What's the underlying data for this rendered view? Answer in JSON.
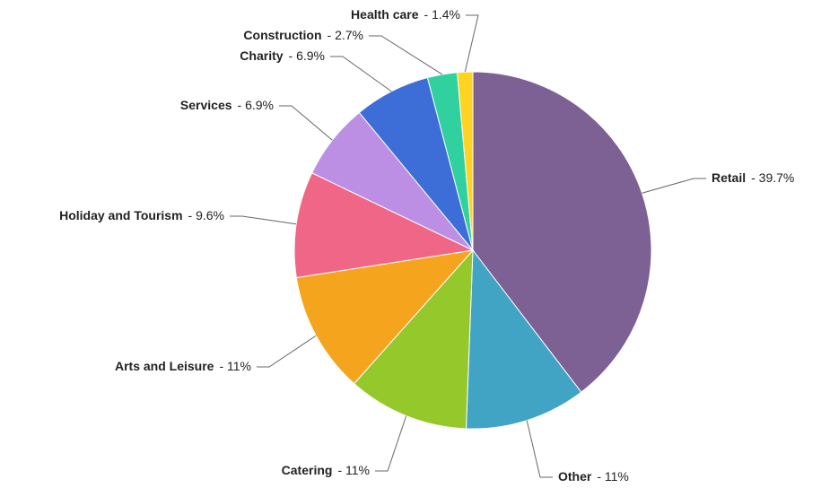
{
  "chart_data": {
    "type": "pie",
    "categories": [
      "Retail",
      "Other",
      "Catering",
      "Arts and Leisure",
      "Holiday and Tourism",
      "Services",
      "Charity",
      "Construction",
      "Health care"
    ],
    "values": [
      39.7,
      11,
      11,
      11,
      9.6,
      6.9,
      6.9,
      2.7,
      1.4
    ],
    "value_labels": [
      "- 39.7%",
      "- 11%",
      "- 11%",
      "- 11%",
      "- 9.6%",
      "- 6.9%",
      "- 6.9%",
      "- 2.7%",
      "- 1.4%"
    ],
    "colors": [
      "#7d6094",
      "#42a4c5",
      "#95c82b",
      "#f5a41d",
      "#f06686",
      "#bc8fe4",
      "#3d6dd7",
      "#30d19f",
      "#ffd320"
    ]
  }
}
